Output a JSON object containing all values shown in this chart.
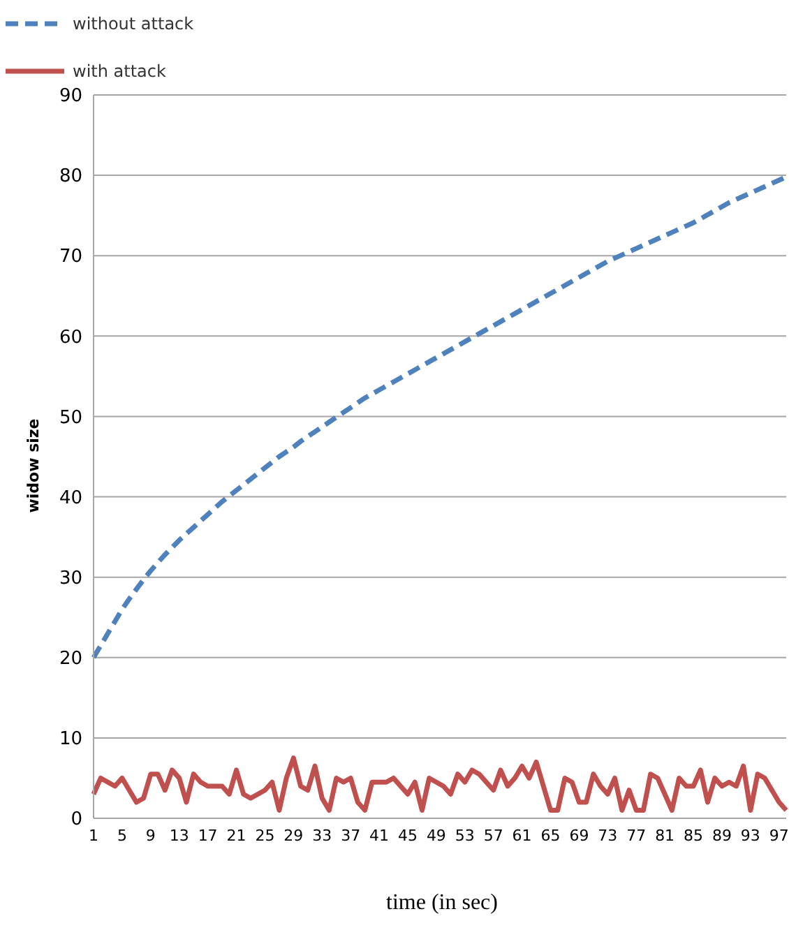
{
  "chart_data": {
    "type": "line",
    "xlabel": "time (in sec)",
    "ylabel": "widow size",
    "categories": [
      "1",
      null,
      null,
      null,
      "5",
      null,
      null,
      null,
      "9",
      null,
      null,
      null,
      "13",
      null,
      null,
      null,
      "17",
      null,
      null,
      null,
      "21",
      null,
      null,
      null,
      "25",
      null,
      null,
      null,
      "29",
      null,
      null,
      null,
      "33",
      null,
      null,
      null,
      "37",
      null,
      null,
      null,
      "41",
      null,
      null,
      null,
      "45",
      null,
      null,
      null,
      "49",
      null,
      null,
      null,
      "53",
      null,
      null,
      null,
      "57",
      null,
      null,
      null,
      "61",
      null,
      null,
      null,
      "65",
      null,
      null,
      null,
      "69",
      null,
      null,
      null,
      "73",
      null,
      null,
      null,
      "77",
      null,
      null,
      null,
      "81",
      null,
      null,
      null,
      "85",
      null,
      null,
      null,
      "89",
      null,
      null,
      null,
      "93",
      null,
      null,
      null,
      "97",
      null
    ],
    "series": [
      {
        "name": "without attack",
        "color": "#4f81bd",
        "line_style": "dashed",
        "values": [
          20,
          21.5,
          23,
          24.5,
          26,
          27.3,
          28.5,
          29.7,
          30.8,
          31.8,
          32.8,
          33.7,
          34.6,
          35.4,
          36.2,
          37,
          37.8,
          38.6,
          39.4,
          40.1,
          40.8,
          41.5,
          42.2,
          42.9,
          43.6,
          44.3,
          45,
          45.6,
          46.2,
          46.9,
          47.5,
          48.1,
          48.7,
          49.3,
          49.9,
          50.5,
          51.1,
          51.7,
          52.3,
          52.8,
          53.3,
          53.8,
          54.3,
          54.8,
          55.3,
          55.8,
          56.3,
          56.8,
          57.3,
          57.8,
          58.3,
          58.8,
          59.3,
          59.8,
          60.3,
          60.8,
          61.3,
          61.8,
          62.3,
          62.8,
          63.3,
          63.8,
          64.3,
          64.8,
          65.3,
          65.8,
          66.3,
          66.8,
          67.3,
          67.8,
          68.3,
          68.8,
          69.3,
          69.7,
          70.1,
          70.5,
          70.9,
          71.3,
          71.7,
          72.1,
          72.5,
          72.9,
          73.3,
          73.7,
          74.1,
          74.6,
          75.1,
          75.6,
          76.1,
          76.6,
          77,
          77.4,
          77.8,
          78.2,
          78.6,
          79,
          79.4,
          79.8
        ]
      },
      {
        "name": "with attack",
        "color": "#c0504d",
        "line_style": "solid",
        "values": [
          3,
          5,
          4.5,
          4,
          5,
          3.5,
          2,
          2.5,
          5.5,
          5.5,
          3.5,
          6,
          5,
          2,
          5.5,
          4.5,
          4,
          4,
          4,
          3,
          6,
          3,
          2.5,
          3,
          3.5,
          4.5,
          1,
          5,
          7.5,
          4,
          3.5,
          6.5,
          2.5,
          1,
          5,
          4.5,
          5,
          2,
          1,
          4.5,
          4.5,
          4.5,
          5,
          4,
          3,
          4.5,
          1,
          5,
          4.5,
          4,
          3,
          5.5,
          4.5,
          6,
          5.5,
          4.5,
          3.5,
          6,
          4,
          5,
          6.5,
          5,
          7,
          4,
          1,
          1,
          5,
          4.5,
          2,
          2,
          5.5,
          4,
          3,
          5,
          1,
          3.5,
          1,
          1,
          5.5,
          5,
          3,
          1,
          5,
          4,
          4,
          6,
          2,
          5,
          4,
          4.5,
          4,
          6.5,
          1,
          5.5,
          5,
          3.5,
          2,
          1
        ]
      }
    ],
    "ylim": [
      0,
      90
    ],
    "yticks": [
      0,
      10,
      20,
      30,
      40,
      50,
      60,
      70,
      80,
      90
    ],
    "grid": "y",
    "legend": "top left",
    "marker": "none"
  }
}
